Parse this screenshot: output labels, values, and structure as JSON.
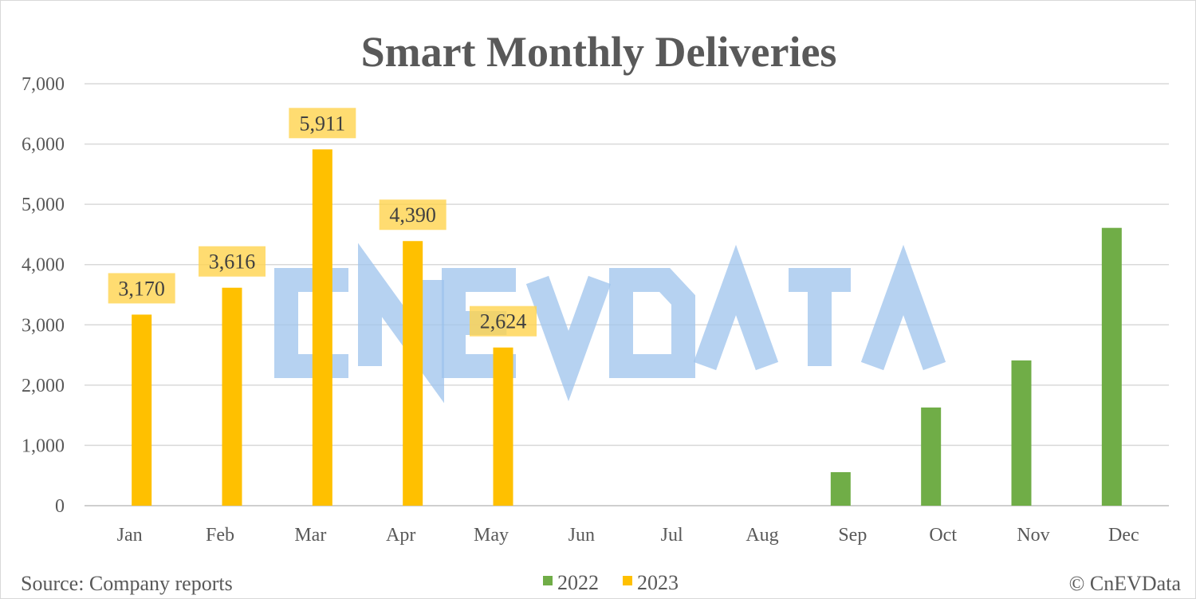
{
  "chart_data": {
    "type": "bar",
    "title": "Smart Monthly Deliveries",
    "categories": [
      "Jan",
      "Feb",
      "Mar",
      "Apr",
      "May",
      "Jun",
      "Jul",
      "Aug",
      "Sep",
      "Oct",
      "Nov",
      "Dec"
    ],
    "series": [
      {
        "name": "2022",
        "color": "#70ad47",
        "values": [
          null,
          null,
          null,
          null,
          null,
          null,
          null,
          null,
          556,
          1629,
          2410,
          4609
        ]
      },
      {
        "name": "2023",
        "color": "#ffc000",
        "values": [
          3170,
          3616,
          5911,
          4390,
          2624,
          null,
          null,
          null,
          null,
          null,
          null,
          null
        ],
        "labels": [
          "3,170",
          "3,616",
          "5,911",
          "4,390",
          "2,624"
        ]
      }
    ],
    "ylim": [
      0,
      7000
    ],
    "yticks": [
      "0",
      "1,000",
      "2,000",
      "3,000",
      "4,000",
      "5,000",
      "6,000",
      "7,000"
    ],
    "grid": true,
    "legend": "bottom-center",
    "xlabel": "",
    "ylabel": ""
  },
  "footer": {
    "source": "Source: Company reports",
    "copyright": "© CnEVData"
  },
  "watermark": "CNEVDATA"
}
